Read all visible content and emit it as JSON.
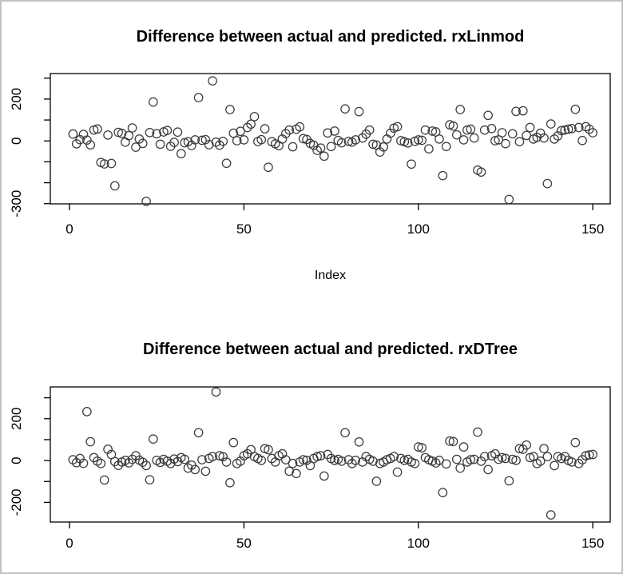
{
  "window": {
    "background": "#ffffff",
    "border_color": "#c2c2c2",
    "plot_color": "#000000",
    "marker_color": "#3a3a3a"
  },
  "chart_data": [
    {
      "type": "scatter",
      "title": "Difference between actual and predicted. rxLinmod",
      "xlabel": "Index",
      "ylabel": "",
      "marker": "open-circle",
      "grid": false,
      "xlim": [
        -5.5,
        155
      ],
      "ylim": [
        -301,
        322
      ],
      "xticks": [
        0,
        50,
        100,
        150
      ],
      "xtick_labels": [
        "0",
        "50",
        "100",
        "150"
      ],
      "yticks": [
        -300,
        -200,
        -100,
        0,
        100,
        200,
        300
      ],
      "ytick_labels": [
        "-300",
        "",
        "",
        "0",
        "",
        "200",
        ""
      ],
      "x_is_index": true,
      "y_values": [
        33,
        -14,
        6,
        31,
        4,
        -19,
        52,
        57,
        -103,
        -110,
        28,
        -108,
        -215,
        41,
        36,
        -6,
        25,
        62,
        -30,
        9,
        -12,
        -289,
        40,
        186,
        34,
        -16,
        43,
        50,
        -26,
        -7,
        42,
        -61,
        -9,
        -4,
        -22,
        5,
        207,
        3,
        6,
        -18,
        287,
        -6,
        -20,
        -2,
        -107,
        150,
        37,
        1,
        46,
        5,
        64,
        80,
        116,
        -3,
        6,
        58,
        -126,
        -4,
        -14,
        -23,
        9,
        35,
        52,
        -28,
        56,
        67,
        11,
        7,
        -12,
        -21,
        -45,
        -34,
        -73,
        38,
        -27,
        47,
        2,
        -9,
        153,
        -2,
        -6,
        5,
        140,
        14,
        32,
        52,
        -16,
        -20,
        -53,
        -29,
        9,
        37,
        61,
        68,
        1,
        -4,
        -10,
        -111,
        -2,
        5,
        3,
        52,
        -38,
        47,
        43,
        9,
        -166,
        -27,
        77,
        71,
        29,
        150,
        5,
        52,
        56,
        14,
        -140,
        -149,
        52,
        122,
        59,
        1,
        5,
        39,
        -13,
        -280,
        34,
        141,
        -4,
        144,
        26,
        64,
        9,
        17,
        37,
        14,
        -204,
        81,
        9,
        24,
        49,
        52,
        56,
        59,
        151,
        64,
        2,
        68,
        56,
        39
      ]
    },
    {
      "type": "scatter",
      "title": "Difference between actual and predicted. rxDTree",
      "xlabel": "",
      "ylabel": "",
      "marker": "open-circle",
      "grid": false,
      "xlim": [
        -5.5,
        155
      ],
      "ylim": [
        -294,
        352
      ],
      "xticks": [
        0,
        50,
        100,
        150
      ],
      "xtick_labels": [
        "0",
        "50",
        "100",
        "150"
      ],
      "yticks": [
        -200,
        -100,
        0,
        100,
        200,
        300
      ],
      "ytick_labels": [
        "-200",
        "",
        "0",
        "",
        "200",
        ""
      ],
      "x_is_index": true,
      "y_values": [
        4,
        -10,
        10,
        -13,
        234,
        90,
        14,
        -3,
        -14,
        -93,
        54,
        29,
        -5,
        -23,
        -7,
        1,
        -11,
        6,
        23,
        2,
        -8,
        -24,
        -92,
        103,
        1,
        -9,
        6,
        -3,
        -14,
        7,
        -5,
        14,
        6,
        -36,
        -22,
        -43,
        133,
        4,
        -51,
        10,
        19,
        328,
        23,
        18,
        -7,
        -106,
        86,
        -14,
        -3,
        23,
        32,
        52,
        19,
        10,
        1,
        57,
        52,
        10,
        -7,
        23,
        32,
        4,
        -51,
        -14,
        -62,
        -7,
        4,
        1,
        -24,
        10,
        19,
        23,
        -74,
        29,
        10,
        1,
        6,
        -3,
        133,
        4,
        -14,
        1,
        89,
        -7,
        19,
        6,
        -3,
        -99,
        -14,
        -7,
        4,
        10,
        19,
        -55,
        10,
        1,
        6,
        -7,
        -14,
        65,
        61,
        14,
        4,
        -3,
        -11,
        1,
        -153,
        -16,
        93,
        91,
        6,
        -36,
        65,
        -7,
        4,
        6,
        136,
        -3,
        19,
        -43,
        23,
        32,
        6,
        14,
        10,
        -97,
        6,
        1,
        57,
        54,
        74,
        14,
        19,
        -14,
        -3,
        57,
        19,
        -260,
        -24,
        19,
        10,
        19,
        1,
        -7,
        86,
        -14,
        4,
        23,
        27,
        29
      ]
    }
  ]
}
